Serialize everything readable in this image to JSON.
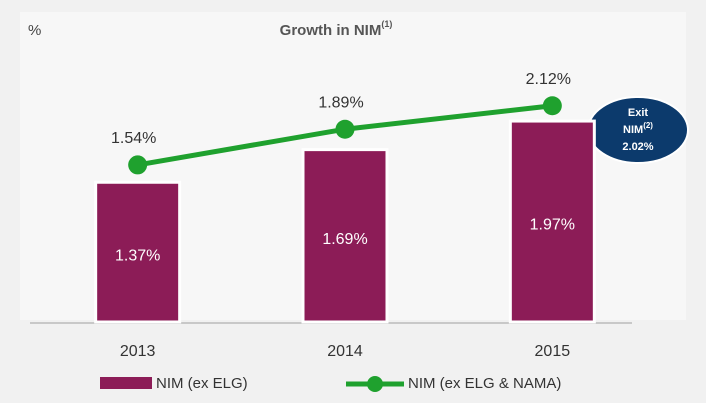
{
  "chart_data": {
    "type": "bar",
    "title": "Growth in NIM",
    "title_note": "(1)",
    "unit_label": "%",
    "categories": [
      "2013",
      "2014",
      "2015"
    ],
    "series": [
      {
        "name": "NIM (ex ELG)",
        "type": "bar",
        "color": "#8c1c57",
        "values": [
          1.37,
          1.69,
          1.97
        ],
        "value_labels": [
          "1.37%",
          "1.69%",
          "1.97%"
        ]
      },
      {
        "name": "NIM (ex ELG & NAMA)",
        "type": "line",
        "color": "#1fa12e",
        "values": [
          1.54,
          1.89,
          2.12
        ],
        "value_labels": [
          "1.54%",
          "1.89%",
          "2.12%"
        ]
      }
    ],
    "annotation": {
      "lines": [
        "Exit",
        "NIM"
      ],
      "note": "(2)",
      "value_label": "2.02%"
    }
  }
}
